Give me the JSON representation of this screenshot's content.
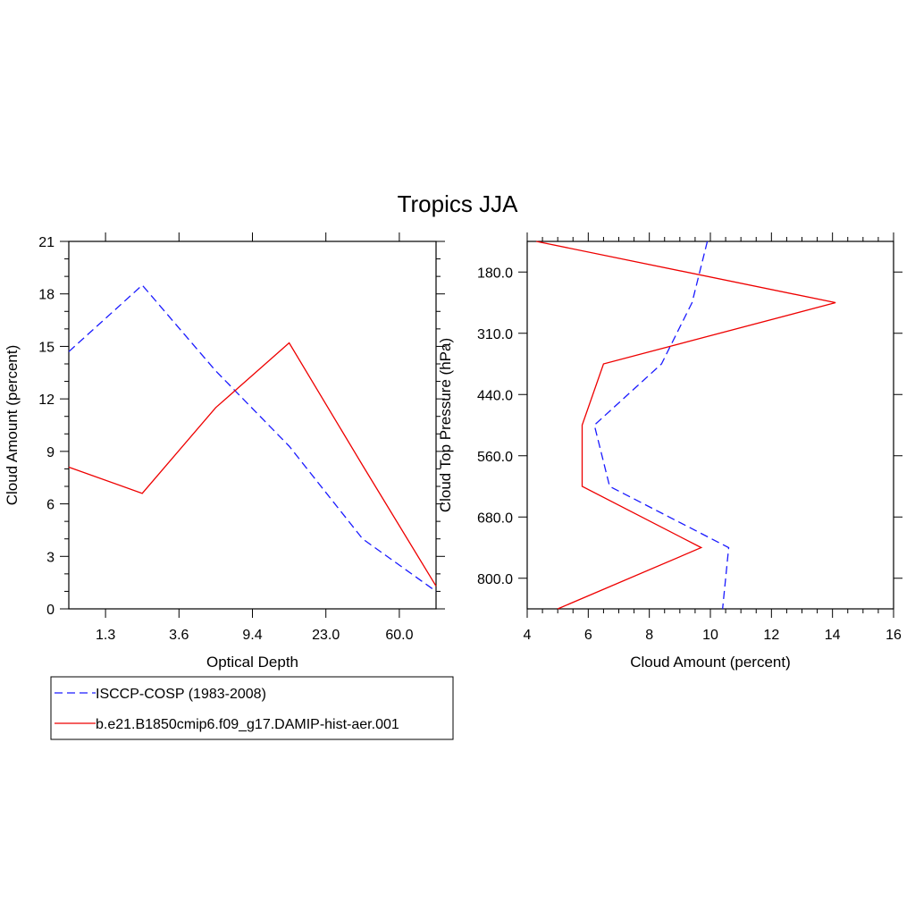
{
  "title": "Tropics JJA",
  "colors": {
    "obs": "#1a1aff",
    "model": "#ee0000",
    "axis": "#000000"
  },
  "legend": {
    "entries": [
      {
        "label": "ISCCP-COSP (1983-2008)",
        "color": "#1a1aff",
        "dashed": true
      },
      {
        "label": "b.e21.B1850cmip6.f09_g17.DAMIP-hist-aer.001",
        "color": "#ee0000",
        "dashed": false
      }
    ]
  },
  "chart_data": [
    {
      "type": "line",
      "xlabel": "Optical Depth",
      "ylabel": "Cloud Amount (percent)",
      "x_tick_labels": [
        "1.3",
        "3.6",
        "9.4",
        "23.0",
        "60.0"
      ],
      "y_tick_labels": [
        "0",
        "3",
        "6",
        "9",
        "12",
        "15",
        "18",
        "21"
      ],
      "ylim": [
        0,
        21
      ],
      "xlim_bins": [
        0,
        5
      ],
      "x_bin_positions": [
        0,
        1,
        2,
        3,
        4,
        5
      ],
      "series": [
        {
          "name": "ISCCP-COSP (1983-2008)",
          "style": "dashed",
          "color": "#1a1aff",
          "values": [
            14.7,
            18.5,
            13.6,
            9.3,
            4.0,
            1.0
          ]
        },
        {
          "name": "b.e21.B1850cmip6.f09_g17.DAMIP-hist-aer.001",
          "style": "solid",
          "color": "#ee0000",
          "values": [
            8.1,
            6.6,
            11.5,
            15.2,
            8.2,
            1.3
          ]
        }
      ]
    },
    {
      "type": "line",
      "orientation": "vertical-profile",
      "xlabel": "Cloud Amount (percent)",
      "ylabel": "Cloud Top Pressure (hPa)",
      "x_tick_labels": [
        "4",
        "6",
        "8",
        "10",
        "12",
        "14",
        "16"
      ],
      "xlim": [
        4,
        16
      ],
      "y_tick_labels": [
        "180.0",
        "310.0",
        "440.0",
        "560.0",
        "680.0",
        "800.0"
      ],
      "y_tick_positions": [
        0.5,
        1.5,
        2.5,
        3.5,
        4.5,
        5.5
      ],
      "ylim_bins": [
        0,
        6
      ],
      "y_bin_positions": [
        0,
        1,
        2,
        3,
        4,
        5,
        6
      ],
      "series": [
        {
          "name": "ISCCP-COSP (1983-2008)",
          "style": "dashed",
          "color": "#1a1aff",
          "values": [
            9.9,
            9.4,
            8.4,
            6.2,
            6.7,
            10.6,
            10.4
          ]
        },
        {
          "name": "b.e21.B1850cmip6.f09_g17.DAMIP-hist-aer.001",
          "style": "solid",
          "color": "#ee0000",
          "values": [
            4.3,
            14.1,
            6.5,
            5.8,
            5.8,
            9.7,
            5.0
          ]
        }
      ]
    }
  ]
}
